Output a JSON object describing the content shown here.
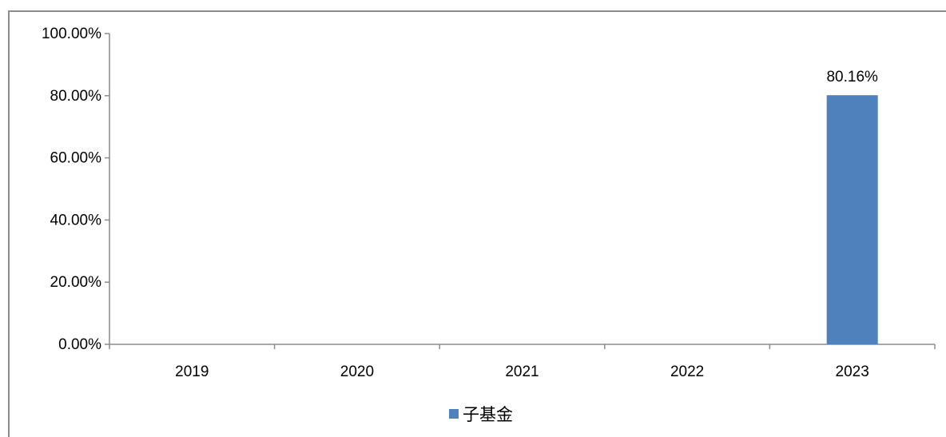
{
  "chart_data": {
    "type": "bar",
    "categories": [
      "2019",
      "2020",
      "2021",
      "2022",
      "2023"
    ],
    "series": [
      {
        "name": "子基金",
        "values": [
          0,
          0,
          0,
          0,
          80.16
        ],
        "data_labels": [
          "",
          "",
          "",
          "",
          "80.16%"
        ],
        "color": "#4f81bd"
      }
    ],
    "y_ticks": [
      "0.00%",
      "20.00%",
      "40.00%",
      "60.00%",
      "80.00%",
      "100.00%"
    ],
    "ylim": [
      0,
      100
    ],
    "title": "",
    "xlabel": "",
    "ylabel": "",
    "grid": false,
    "legend_position": "bottom"
  }
}
